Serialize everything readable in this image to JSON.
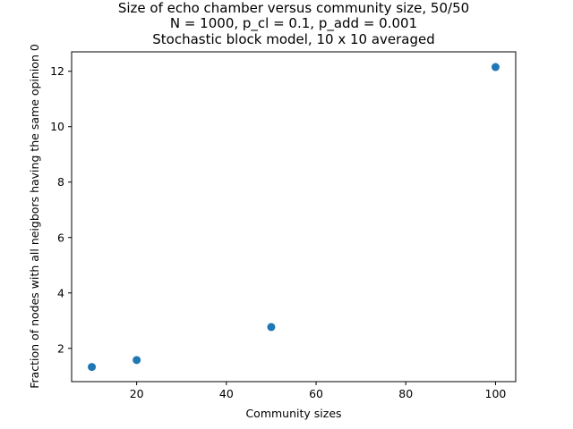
{
  "chart_data": {
    "type": "scatter",
    "title_lines": [
      "Size of echo chamber versus community size, 50/50",
      "N = 1000, p_cl = 0.1, p_add = 0.001",
      "Stochastic block model, 10 x 10 averaged"
    ],
    "xlabel": "Community sizes",
    "ylabel": "Fraction of nodes with all neigbors having the same opinion 0",
    "xlim": [
      5.5,
      104.5
    ],
    "ylim": [
      0.8,
      12.7
    ],
    "x_ticks": [
      20,
      40,
      60,
      80,
      100
    ],
    "y_ticks": [
      2,
      4,
      6,
      8,
      10,
      12
    ],
    "grid": false,
    "point_color": "#1f77b4",
    "points": [
      {
        "x": 10,
        "y": 1.33
      },
      {
        "x": 20,
        "y": 1.58
      },
      {
        "x": 50,
        "y": 2.77
      },
      {
        "x": 100,
        "y": 12.15
      }
    ]
  }
}
